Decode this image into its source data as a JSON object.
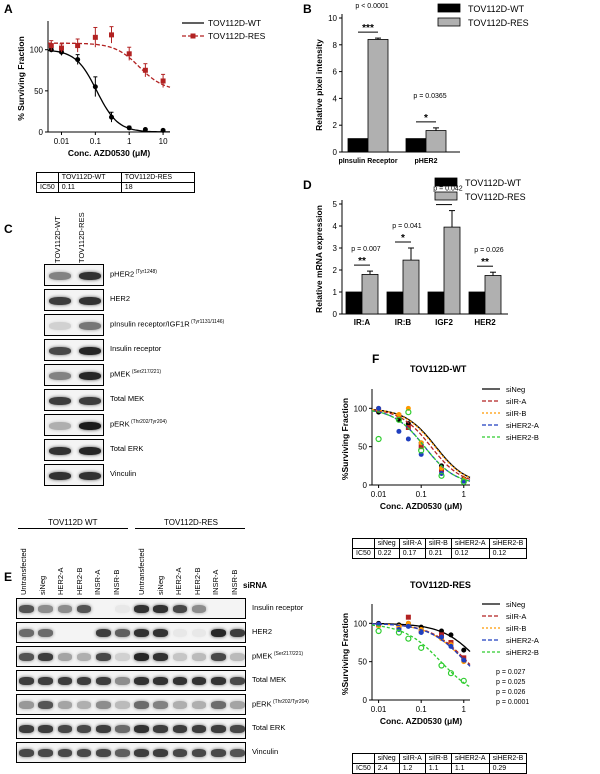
{
  "panels": {
    "A": {
      "letter": "A",
      "ylabel": "% Surviving Fraction",
      "xlabel": "Conc. AZD0530 (μM)",
      "yticks": [
        "0",
        "50",
        "100"
      ],
      "xticks": [
        "0.01",
        "0.1",
        "1",
        "10"
      ],
      "legend": [
        "TOV112D-WT",
        "TOV112D-RES"
      ],
      "table": {
        "header": [
          "",
          "TOV112D-WT",
          "TOV112D-RES"
        ],
        "row": [
          "IC50",
          "0.11",
          "18"
        ]
      }
    },
    "B": {
      "letter": "B",
      "ylabel": "Relative pixel intensity",
      "yticks": [
        "0",
        "2",
        "4",
        "6",
        "8",
        "10"
      ],
      "categories": [
        "pInsulin Receptor",
        "pHER2"
      ],
      "legend": [
        "TOV112D-WT",
        "TOV112D-RES"
      ],
      "pvalues": [
        "p < 0.0001",
        "p = 0.0365"
      ],
      "stars": [
        "***",
        "*"
      ]
    },
    "C": {
      "letter": "C",
      "lanes": [
        "TOV112D-WT",
        "TOV112D-RES"
      ],
      "rows": [
        {
          "label": "pHER2",
          "sup": "(Tyr1248)"
        },
        {
          "label": "HER2",
          "sup": ""
        },
        {
          "label": "pInsulin receptor/IGF1R",
          "sup": "(Tyr1131/1146)"
        },
        {
          "label": "Insulin receptor",
          "sup": ""
        },
        {
          "label": "pMEK",
          "sup": "(Ser217/221)"
        },
        {
          "label": "Total MEK",
          "sup": ""
        },
        {
          "label": "pERK",
          "sup": "(Thr202/Tyr204)"
        },
        {
          "label": "Total ERK",
          "sup": ""
        },
        {
          "label": "Vinculin",
          "sup": ""
        }
      ]
    },
    "D": {
      "letter": "D",
      "ylabel": "Relative mRNA expression",
      "yticks": [
        "0",
        "1",
        "2",
        "3",
        "4",
        "5"
      ],
      "categories": [
        "IR:A",
        "IR:B",
        "IGF2",
        "HER2"
      ],
      "legend": [
        "TOV112D-WT",
        "TOV112D-RES"
      ],
      "pvalues": [
        "p = 0.007",
        "p = 0.041",
        "p = 0.042",
        "p = 0.026"
      ],
      "stars": [
        "**",
        "*",
        "*",
        "**"
      ]
    },
    "E": {
      "letter": "E",
      "group_wt": "TOV112D WT",
      "group_res": "TOV112D-RES",
      "sirna_label": "siRNA",
      "lanes": [
        "Untransfected",
        "siNeg",
        "HER2-A",
        "HER2-B",
        "INSR-A",
        "INSR-B"
      ],
      "rows": [
        {
          "label": "Insulin receptor",
          "sup": ""
        },
        {
          "label": "HER2",
          "sup": ""
        },
        {
          "label": "pMEK",
          "sup": "(Ser217/221)"
        },
        {
          "label": "Total MEK",
          "sup": ""
        },
        {
          "label": "pERK",
          "sup": "(Thr202/Tyr204)"
        },
        {
          "label": "Total ERK",
          "sup": ""
        },
        {
          "label": "Vinculin",
          "sup": ""
        }
      ]
    },
    "F": {
      "letter": "F",
      "title_wt": "TOV112D-WT",
      "title_res": "TOV112D-RES",
      "ylabel": "%Surviving Fraction",
      "xlabel": "Conc. AZD0530 (μM)",
      "yticks": [
        "0",
        "50",
        "100"
      ],
      "xticks": [
        "0.01",
        "0.1",
        "1"
      ],
      "legend": [
        "siNeg",
        "siIR-A",
        "siIR-B",
        "siHER2-A",
        "siHER2-B"
      ],
      "pvalues_res": [
        "p = 0.027",
        "p = 0.025",
        "p = 0.026",
        "p = 0.0001"
      ],
      "table_wt": {
        "header": [
          "",
          "siNeg",
          "siIR-A",
          "siIR-B",
          "siHER2-A",
          "siHER2-B"
        ],
        "row": [
          "IC50",
          "0.22",
          "0.17",
          "0.21",
          "0.12",
          "0.12"
        ]
      },
      "table_res": {
        "header": [
          "",
          "siNeg",
          "siIR-A",
          "siIR-B",
          "siHER2-A",
          "siHER2-B"
        ],
        "row": [
          "IC50",
          "2.4",
          "1.2",
          "1.1",
          "1.1",
          "0.29"
        ]
      }
    }
  },
  "colors": {
    "wt": "#000000",
    "res_a": "#b22222",
    "bar_wt": "#000000",
    "bar_res": "#b0b0b0",
    "siNeg": "#000000",
    "siIR_A": "#b22222",
    "siIR_B": "#ff9900",
    "siHER2_A": "#1f3fbf",
    "siHER2_B": "#2ecc2e"
  },
  "chart_data": [
    {
      "type": "scatter",
      "panel": "A",
      "xscale": "log",
      "xlabel": "Conc. AZD0530 (μM)",
      "ylabel": "% Surviving Fraction",
      "ylim": [
        0,
        130
      ],
      "series": [
        {
          "name": "TOV112D-WT",
          "x": [
            0.005,
            0.01,
            0.03,
            0.1,
            0.3,
            1,
            3,
            10
          ],
          "y": [
            100,
            97,
            88,
            55,
            18,
            5,
            3,
            2
          ],
          "err": [
            3,
            4,
            6,
            12,
            6,
            2,
            1,
            1
          ]
        },
        {
          "name": "TOV112D-RES",
          "x": [
            0.005,
            0.01,
            0.03,
            0.1,
            0.3,
            1,
            3,
            10
          ],
          "y": [
            105,
            102,
            105,
            115,
            118,
            95,
            75,
            62
          ],
          "err": [
            6,
            5,
            8,
            12,
            10,
            8,
            8,
            8
          ]
        }
      ]
    },
    {
      "type": "bar",
      "panel": "B",
      "categories": [
        "pInsulin Receptor",
        "pHER2"
      ],
      "ylabel": "Relative pixel intensity",
      "ylim": [
        0,
        10
      ],
      "series": [
        {
          "name": "TOV112D-WT",
          "values": [
            1.0,
            1.0
          ],
          "err": [
            0,
            0
          ]
        },
        {
          "name": "TOV112D-RES",
          "values": [
            8.4,
            1.6
          ],
          "err": [
            0.1,
            0.2
          ]
        }
      ]
    },
    {
      "type": "bar",
      "panel": "D",
      "categories": [
        "IR:A",
        "IR:B",
        "IGF2",
        "HER2"
      ],
      "ylabel": "Relative mRNA expression",
      "ylim": [
        0,
        5
      ],
      "series": [
        {
          "name": "TOV112D-WT",
          "values": [
            1.0,
            1.0,
            1.0,
            1.0
          ],
          "err": [
            0,
            0,
            0,
            0
          ]
        },
        {
          "name": "TOV112D-RES",
          "values": [
            1.8,
            2.45,
            3.95,
            1.75
          ],
          "err": [
            0.15,
            0.55,
            0.75,
            0.15
          ]
        }
      ]
    },
    {
      "type": "scatter",
      "panel": "F-WT",
      "xscale": "log",
      "xlabel": "Conc. AZD0530 (μM)",
      "ylabel": "%Surviving Fraction",
      "ylim": [
        0,
        120
      ],
      "series": [
        {
          "name": "siNeg",
          "x": [
            0.01,
            0.03,
            0.05,
            0.1,
            0.3,
            1
          ],
          "y": [
            95,
            85,
            80,
            55,
            25,
            8
          ]
        },
        {
          "name": "siIR-A",
          "x": [
            0.01,
            0.03,
            0.05,
            0.1,
            0.3,
            1
          ],
          "y": [
            98,
            90,
            75,
            50,
            20,
            6
          ]
        },
        {
          "name": "siIR-B",
          "x": [
            0.01,
            0.03,
            0.05,
            0.1,
            0.3,
            1
          ],
          "y": [
            100,
            92,
            100,
            55,
            22,
            7
          ]
        },
        {
          "name": "siHER2-A",
          "x": [
            0.01,
            0.03,
            0.05,
            0.1,
            0.3,
            1
          ],
          "y": [
            100,
            70,
            60,
            40,
            15,
            5
          ]
        },
        {
          "name": "siHER2-B",
          "x": [
            0.01,
            0.03,
            0.05,
            0.1,
            0.3,
            1
          ],
          "y": [
            60,
            85,
            95,
            45,
            12,
            4
          ]
        }
      ]
    },
    {
      "type": "scatter",
      "panel": "F-RES",
      "xscale": "log",
      "xlabel": "Conc. AZD0530 (μM)",
      "ylabel": "%Surviving Fraction",
      "ylim": [
        0,
        120
      ],
      "series": [
        {
          "name": "siNeg",
          "x": [
            0.01,
            0.03,
            0.05,
            0.1,
            0.3,
            0.5,
            1
          ],
          "y": [
            100,
            98,
            100,
            95,
            90,
            85,
            65
          ]
        },
        {
          "name": "siIR-A",
          "x": [
            0.01,
            0.03,
            0.05,
            0.1,
            0.3,
            0.5,
            1
          ],
          "y": [
            98,
            95,
            108,
            90,
            85,
            75,
            55
          ]
        },
        {
          "name": "siIR-B",
          "x": [
            0.01,
            0.03,
            0.05,
            0.1,
            0.3,
            0.5,
            1
          ],
          "y": [
            97,
            96,
            100,
            92,
            80,
            72,
            50
          ]
        },
        {
          "name": "siHER2-A",
          "x": [
            0.01,
            0.03,
            0.05,
            0.1,
            0.3,
            0.5,
            1
          ],
          "y": [
            99,
            92,
            96,
            88,
            82,
            70,
            52
          ]
        },
        {
          "name": "siHER2-B",
          "x": [
            0.01,
            0.03,
            0.05,
            0.1,
            0.3,
            0.5,
            1
          ],
          "y": [
            90,
            88,
            80,
            68,
            45,
            35,
            25
          ]
        }
      ]
    }
  ]
}
